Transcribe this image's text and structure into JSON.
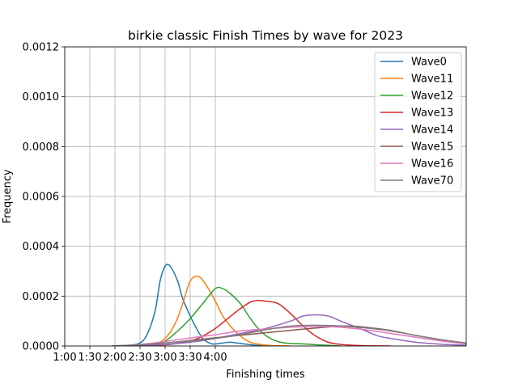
{
  "chart_data": {
    "type": "line",
    "title": "birkie classic Finish Times by wave for 2023",
    "xlabel": "Finishing times",
    "ylabel": "Frequency",
    "xlim_minutes": [
      60,
      220
    ],
    "ylim": [
      0,
      0.0012
    ],
    "x_ticks": [
      {
        "label": "1:00",
        "minutes": 60
      },
      {
        "label": "1:30",
        "minutes": 70
      },
      {
        "label": "2:00",
        "minutes": 80
      },
      {
        "label": "2:30",
        "minutes": 90
      },
      {
        "label": "3:00",
        "minutes": 100
      },
      {
        "label": "3:30",
        "minutes": 110
      },
      {
        "label": "4:00",
        "minutes": 120
      }
    ],
    "y_ticks": [
      "0.0000",
      "0.0002",
      "0.0004",
      "0.0006",
      "0.0008",
      "0.0010",
      "0.0012"
    ],
    "grid": true,
    "legend_position": "top-right",
    "series": [
      {
        "name": "Wave0",
        "color": "#1f77b4",
        "x": [
          79,
          85,
          90,
          93,
          96,
          98,
          100,
          102,
          105,
          107,
          110,
          112,
          115,
          118,
          120,
          123,
          126,
          130,
          135,
          140
        ],
        "y": [
          0,
          2e-06,
          1.2e-05,
          5e-05,
          0.00014,
          0.00026,
          0.00032,
          0.00032,
          0.00026,
          0.00019,
          0.00012,
          8e-05,
          3e-05,
          1e-05,
          8e-06,
          1.2e-05,
          1.5e-05,
          1e-05,
          4e-06,
          0
        ]
      },
      {
        "name": "Wave11",
        "color": "#ff7f0e",
        "x": [
          79,
          90,
          96,
          100,
          104,
          107,
          110,
          113,
          116,
          120,
          123,
          126,
          130,
          134,
          138,
          142,
          146,
          150
        ],
        "y": [
          0,
          3e-06,
          1e-05,
          3e-05,
          9e-05,
          0.00017,
          0.00026,
          0.00028,
          0.00025,
          0.00018,
          0.00012,
          8e-05,
          4e-05,
          1.5e-05,
          6e-06,
          2e-06,
          1e-06,
          0
        ]
      },
      {
        "name": "Wave12",
        "color": "#2ca02c",
        "x": [
          79,
          95,
          100,
          105,
          110,
          115,
          120,
          123,
          126,
          130,
          134,
          138,
          142,
          146,
          150,
          155,
          160,
          170
        ],
        "y": [
          0,
          5e-06,
          2e-05,
          6e-05,
          0.00011,
          0.00017,
          0.00023,
          0.00023,
          0.00021,
          0.00017,
          0.00011,
          6e-05,
          3e-05,
          1.5e-05,
          1e-05,
          8e-06,
          5e-06,
          0
        ]
      },
      {
        "name": "Wave13",
        "color": "#d62728",
        "x": [
          79,
          100,
          110,
          115,
          120,
          125,
          130,
          135,
          140,
          145,
          150,
          155,
          160,
          165,
          170,
          175,
          180,
          190
        ],
        "y": [
          0,
          5e-06,
          2e-05,
          4e-05,
          7e-05,
          0.00011,
          0.00015,
          0.00018,
          0.00018,
          0.00017,
          0.00013,
          8e-05,
          4e-05,
          1.5e-05,
          6e-06,
          3e-06,
          1e-06,
          0
        ]
      },
      {
        "name": "Wave14",
        "color": "#9467bd",
        "x": [
          79,
          100,
          110,
          120,
          130,
          140,
          150,
          155,
          160,
          165,
          170,
          175,
          180,
          185,
          190,
          200,
          210,
          220
        ],
        "y": [
          0,
          6e-06,
          1.5e-05,
          3e-05,
          5e-05,
          7e-05,
          0.0001,
          0.00012,
          0.000125,
          0.00012,
          0.0001,
          8e-05,
          6e-05,
          4e-05,
          3e-05,
          1.5e-05,
          7e-06,
          3e-06
        ]
      },
      {
        "name": "Wave15",
        "color": "#8c564b",
        "x": [
          79,
          90,
          100,
          110,
          120,
          130,
          140,
          150,
          160,
          170,
          175,
          180,
          190,
          200,
          210,
          220
        ],
        "y": [
          0,
          5e-06,
          1.2e-05,
          2.2e-05,
          3.3e-05,
          4.3e-05,
          5.3e-05,
          6.3e-05,
          7.2e-05,
          8e-05,
          7.9e-05,
          7.5e-05,
          6.2e-05,
          4.2e-05,
          2.5e-05,
          1e-05
        ]
      },
      {
        "name": "Wave16",
        "color": "#e377c2",
        "x": [
          79,
          90,
          100,
          110,
          120,
          130,
          140,
          150,
          160,
          165,
          170,
          180,
          190,
          200,
          210,
          220
        ],
        "y": [
          0,
          6e-06,
          1.8e-05,
          3.2e-05,
          4.5e-05,
          6e-05,
          6.8e-05,
          7.5e-05,
          7.8e-05,
          7.8e-05,
          7.5e-05,
          6.5e-05,
          5e-05,
          3.5e-05,
          2e-05,
          8e-06
        ]
      },
      {
        "name": "Wave70",
        "color": "#7f7f7f",
        "x": [
          79,
          90,
          100,
          110,
          120,
          130,
          140,
          150,
          160,
          170,
          180,
          190,
          200,
          210,
          220
        ],
        "y": [
          0,
          5e-06,
          1.2e-05,
          2e-05,
          3e-05,
          4.5e-05,
          6.5e-05,
          8e-05,
          8.3e-05,
          8e-05,
          7.2e-05,
          6e-05,
          4.2e-05,
          2.5e-05,
          1.2e-05
        ]
      }
    ]
  }
}
